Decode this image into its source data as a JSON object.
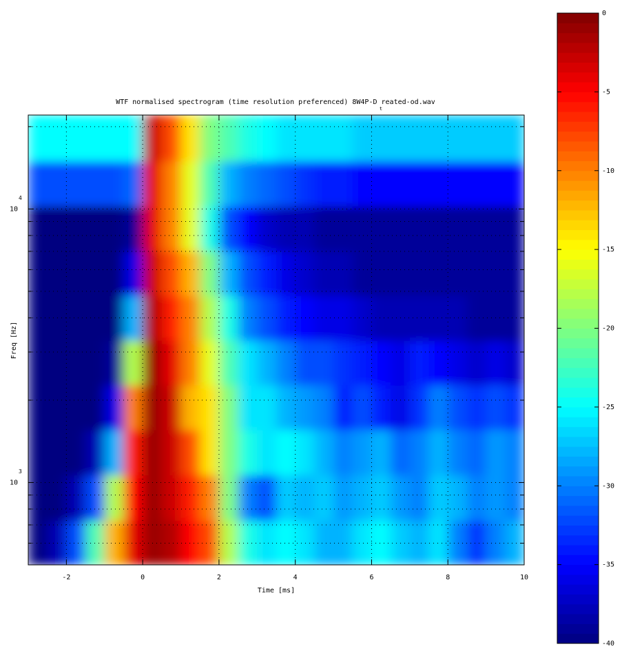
{
  "chart_data": {
    "type": "heatmap",
    "title": "WTF normalised spectrogram (time resolution preferenced)  8W4P-D reated-od.wav",
    "annotation": "t",
    "x_label": "Time [ms]",
    "y_label": "Freq [Hz]",
    "xlim": [
      -3,
      10
    ],
    "xticks": [
      -2,
      0,
      2,
      4,
      6,
      8,
      10
    ],
    "ylim": [
      500,
      22050
    ],
    "log_y": true,
    "yticks": [
      {
        "value": 1000,
        "label": "10",
        "exponent": "3"
      },
      {
        "value": 10000,
        "label": "10",
        "exponent": "4"
      }
    ],
    "yminorticks": [
      600,
      700,
      800,
      900,
      2000,
      3000,
      4000,
      5000,
      6000,
      7000,
      8000,
      9000,
      20000
    ],
    "grid": true,
    "colormap": "jet",
    "clim": [
      -40,
      0
    ],
    "cticks": [
      0,
      -5,
      -10,
      -15,
      -20,
      -25,
      -30,
      -35,
      -40
    ],
    "x": [
      -2.75,
      -2.25,
      -1.75,
      -1.25,
      -0.75,
      -0.25,
      0.25,
      0.75,
      1.25,
      1.75,
      2.25,
      2.75,
      3.25,
      3.75,
      4.25,
      4.75,
      5.25,
      5.75,
      6.25,
      6.75,
      7.25,
      7.75,
      8.25,
      8.75,
      9.25,
      9.75
    ],
    "y": [
      600,
      880,
      1290,
      1880,
      2740,
      3990,
      5820,
      8490,
      12390,
      18070
    ],
    "z": [
      [
        -40,
        -38,
        -32,
        -22,
        -12,
        -4,
        -1,
        -2,
        -5,
        -8,
        -18,
        -24,
        -26,
        -25,
        -26,
        -28,
        -28,
        -26,
        -25,
        -27,
        -28,
        -26,
        -30,
        -33,
        -30,
        -28
      ],
      [
        -40,
        -40,
        -38,
        -32,
        -18,
        -5,
        -1,
        -3,
        -6,
        -10,
        -20,
        -30,
        -32,
        -27,
        -28,
        -27,
        -29,
        -28,
        -27,
        -29,
        -30,
        -27,
        -28,
        -30,
        -29,
        -30
      ],
      [
        -40,
        -40,
        -40,
        -38,
        -28,
        -6,
        -1,
        -3,
        -8,
        -14,
        -20,
        -24,
        -26,
        -25,
        -26,
        -28,
        -30,
        -29,
        -28,
        -31,
        -30,
        -28,
        -30,
        -31,
        -29,
        -30
      ],
      [
        -40,
        -40,
        -40,
        -40,
        -36,
        -10,
        -1,
        -3,
        -12,
        -14,
        -20,
        -26,
        -26,
        -28,
        -29,
        -30,
        -34,
        -32,
        -34,
        -36,
        -33,
        -30,
        -32,
        -33,
        -32,
        -33
      ],
      [
        -40,
        -40,
        -40,
        -40,
        -39,
        -18,
        -1,
        -4,
        -10,
        -16,
        -22,
        -26,
        -28,
        -30,
        -32,
        -32,
        -33,
        -34,
        -35,
        -36,
        -34,
        -35,
        -36,
        -37,
        -36,
        -37
      ],
      [
        -40,
        -40,
        -40,
        -40,
        -40,
        -28,
        -2,
        -6,
        -10,
        -18,
        -24,
        -30,
        -32,
        -34,
        -35,
        -36,
        -36,
        -37,
        -38,
        -38,
        -38,
        -38,
        -38,
        -39,
        -39,
        -39
      ],
      [
        -40,
        -40,
        -40,
        -40,
        -40,
        -36,
        -3,
        -8,
        -12,
        -20,
        -28,
        -32,
        -34,
        -36,
        -37,
        -38,
        -38,
        -39,
        -39,
        -39,
        -39,
        -39,
        -39,
        -39,
        -39,
        -39
      ],
      [
        -40,
        -40,
        -40,
        -40,
        -40,
        -39,
        -4,
        -10,
        -16,
        -24,
        -32,
        -35,
        -37,
        -38,
        -38,
        -39,
        -39,
        -39,
        -39,
        -39,
        -39,
        -39,
        -39,
        -39,
        -39,
        -39
      ],
      [
        -32,
        -32,
        -32,
        -32,
        -32,
        -31,
        -4,
        -10,
        -16,
        -22,
        -28,
        -30,
        -31,
        -32,
        -33,
        -34,
        -34,
        -35,
        -35,
        -35,
        -35,
        -35,
        -35,
        -35,
        -35,
        -35
      ],
      [
        -25,
        -25,
        -25,
        -25,
        -25,
        -25,
        -3,
        -8,
        -14,
        -20,
        -22,
        -24,
        -25,
        -26,
        -26,
        -26,
        -26,
        -27,
        -27,
        -27,
        -27,
        -27,
        -27,
        -27,
        -27,
        -27
      ]
    ]
  }
}
